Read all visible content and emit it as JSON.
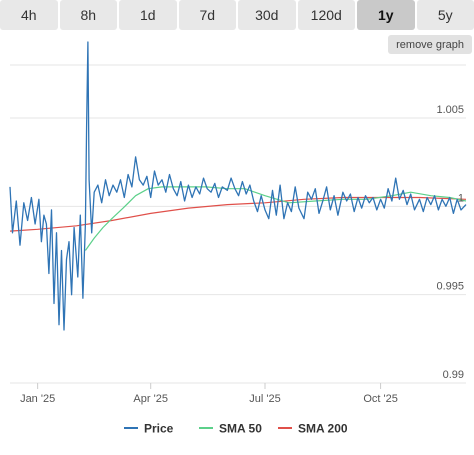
{
  "toolbar": {
    "ranges": [
      {
        "label": "4h",
        "active": false
      },
      {
        "label": "8h",
        "active": false
      },
      {
        "label": "1d",
        "active": false
      },
      {
        "label": "7d",
        "active": false
      },
      {
        "label": "30d",
        "active": false
      },
      {
        "label": "120d",
        "active": false
      },
      {
        "label": "1y",
        "active": true
      },
      {
        "label": "5y",
        "active": false
      }
    ],
    "remove_label": "remove graph"
  },
  "chart_data": {
    "type": "line",
    "title": "",
    "xlabel": "",
    "ylabel": "",
    "x_range": [
      "2024-12-10",
      "2025-12-08"
    ],
    "ylim": [
      0.99,
      1.008
    ],
    "grid": true,
    "legend_position": "bottom",
    "x_ticks": [
      {
        "date": "2025-01-01",
        "label": "Jan '25"
      },
      {
        "date": "2025-04-01",
        "label": "Apr '25"
      },
      {
        "date": "2025-07-01",
        "label": "Jul '25"
      },
      {
        "date": "2025-10-01",
        "label": "Oct '25"
      }
    ],
    "y_ticks": [
      {
        "value": 0.99,
        "label": "0.99"
      },
      {
        "value": 0.995,
        "label": "0.995"
      },
      {
        "value": 1.0,
        "label": "1"
      },
      {
        "value": 1.005,
        "label": "1.005"
      }
    ],
    "series": [
      {
        "name": "Price",
        "color": "#2f74b5",
        "points": [
          [
            "2024-12-10",
            1.0011
          ],
          [
            "2024-12-12",
            0.9985
          ],
          [
            "2024-12-15",
            1.0003
          ],
          [
            "2024-12-18",
            0.9978
          ],
          [
            "2024-12-21",
            1.0002
          ],
          [
            "2024-12-24",
            0.9992
          ],
          [
            "2024-12-27",
            1.0005
          ],
          [
            "2024-12-30",
            0.999
          ],
          [
            "2025-01-02",
            1.0004
          ],
          [
            "2025-01-04",
            0.998
          ],
          [
            "2025-01-06",
            0.9995
          ],
          [
            "2025-01-08",
            0.999
          ],
          [
            "2025-01-10",
            0.9962
          ],
          [
            "2025-01-12",
            0.9998
          ],
          [
            "2025-01-14",
            0.9945
          ],
          [
            "2025-01-16",
            0.9985
          ],
          [
            "2025-01-18",
            0.9933
          ],
          [
            "2025-01-20",
            0.9975
          ],
          [
            "2025-01-22",
            0.993
          ],
          [
            "2025-01-24",
            0.997
          ],
          [
            "2025-01-26",
            0.998
          ],
          [
            "2025-01-28",
            0.995
          ],
          [
            "2025-01-30",
            0.9988
          ],
          [
            "2025-02-02",
            0.996
          ],
          [
            "2025-02-04",
            0.9995
          ],
          [
            "2025-02-06",
            0.9948
          ],
          [
            "2025-02-08",
            0.999
          ],
          [
            "2025-02-09",
            1.0045
          ],
          [
            "2025-02-10",
            1.0093
          ],
          [
            "2025-02-11",
            1.0015
          ],
          [
            "2025-02-13",
            0.9985
          ],
          [
            "2025-02-15",
            1.0008
          ],
          [
            "2025-02-18",
            1.0012
          ],
          [
            "2025-02-21",
            1.0002
          ],
          [
            "2025-02-24",
            1.0015
          ],
          [
            "2025-02-27",
            1.0006
          ],
          [
            "2025-03-02",
            1.0012
          ],
          [
            "2025-03-05",
            1.0008
          ],
          [
            "2025-03-08",
            1.0015
          ],
          [
            "2025-03-11",
            1.0005
          ],
          [
            "2025-03-14",
            1.0018
          ],
          [
            "2025-03-17",
            1.0011
          ],
          [
            "2025-03-20",
            1.0028
          ],
          [
            "2025-03-23",
            1.0015
          ],
          [
            "2025-03-26",
            1.0012
          ],
          [
            "2025-03-29",
            1.0017
          ],
          [
            "2025-04-01",
            1.0005
          ],
          [
            "2025-04-04",
            1.002
          ],
          [
            "2025-04-07",
            1.0012
          ],
          [
            "2025-04-10",
            1.0015
          ],
          [
            "2025-04-13",
            1.0008
          ],
          [
            "2025-04-16",
            1.0018
          ],
          [
            "2025-04-19",
            1.001
          ],
          [
            "2025-04-22",
            1.0006
          ],
          [
            "2025-04-25",
            1.0014
          ],
          [
            "2025-04-28",
            1.0003
          ],
          [
            "2025-05-01",
            1.0012
          ],
          [
            "2025-05-04",
            1.0005
          ],
          [
            "2025-05-07",
            1.0011
          ],
          [
            "2025-05-10",
            1.0007
          ],
          [
            "2025-05-13",
            1.0016
          ],
          [
            "2025-05-16",
            1.001
          ],
          [
            "2025-05-19",
            1.0008
          ],
          [
            "2025-05-22",
            1.0013
          ],
          [
            "2025-05-25",
            1.0005
          ],
          [
            "2025-05-28",
            1.0011
          ],
          [
            "2025-06-01",
            1.0009
          ],
          [
            "2025-06-04",
            1.0016
          ],
          [
            "2025-06-07",
            1.001
          ],
          [
            "2025-06-10",
            1.0006
          ],
          [
            "2025-06-13",
            1.0014
          ],
          [
            "2025-06-16",
            1.0007
          ],
          [
            "2025-06-19",
            1.0012
          ],
          [
            "2025-06-22",
            1.0003
          ],
          [
            "2025-06-25",
            0.9997
          ],
          [
            "2025-06-28",
            1.0006
          ],
          [
            "2025-07-01",
            0.9998
          ],
          [
            "2025-07-04",
            0.9993
          ],
          [
            "2025-07-07",
            1.0009
          ],
          [
            "2025-07-10",
            0.9995
          ],
          [
            "2025-07-13",
            1.0012
          ],
          [
            "2025-07-16",
            0.9993
          ],
          [
            "2025-07-19",
            1.0002
          ],
          [
            "2025-07-22",
            0.9997
          ],
          [
            "2025-07-25",
            1.0011
          ],
          [
            "2025-07-28",
            0.9999
          ],
          [
            "2025-08-01",
            0.9993
          ],
          [
            "2025-08-04",
            1.0008
          ],
          [
            "2025-08-07",
            1.0004
          ],
          [
            "2025-08-10",
            1.001
          ],
          [
            "2025-08-13",
            0.9996
          ],
          [
            "2025-08-16",
            1.0003
          ],
          [
            "2025-08-19",
            1.0011
          ],
          [
            "2025-08-22",
            0.9998
          ],
          [
            "2025-08-25",
            1.0006
          ],
          [
            "2025-08-28",
            0.9995
          ],
          [
            "2025-09-01",
            1.0008
          ],
          [
            "2025-09-04",
            1.0003
          ],
          [
            "2025-09-07",
            1.0007
          ],
          [
            "2025-09-10",
            0.9997
          ],
          [
            "2025-09-13",
            1.0005
          ],
          [
            "2025-09-16",
            0.9999
          ],
          [
            "2025-09-19",
            1.0006
          ],
          [
            "2025-09-22",
            1.0002
          ],
          [
            "2025-09-25",
            1.0005
          ],
          [
            "2025-09-28",
            0.9998
          ],
          [
            "2025-10-01",
            1.0004
          ],
          [
            "2025-10-04",
            0.9999
          ],
          [
            "2025-10-07",
            1.001
          ],
          [
            "2025-10-10",
            1.0003
          ],
          [
            "2025-10-13",
            1.0016
          ],
          [
            "2025-10-16",
            1.0004
          ],
          [
            "2025-10-19",
            1.0009
          ],
          [
            "2025-10-22",
            1.0001
          ],
          [
            "2025-10-25",
            1.0007
          ],
          [
            "2025-10-28",
            0.9998
          ],
          [
            "2025-11-01",
            1.0004
          ],
          [
            "2025-11-04",
            0.9997
          ],
          [
            "2025-11-07",
            1.0005
          ],
          [
            "2025-11-10",
            1.0001
          ],
          [
            "2025-11-13",
            1.0006
          ],
          [
            "2025-11-16",
            0.9998
          ],
          [
            "2025-11-19",
            1.0004
          ],
          [
            "2025-11-22",
            1.0
          ],
          [
            "2025-11-25",
            1.0005
          ],
          [
            "2025-11-28",
            0.9996
          ],
          [
            "2025-12-01",
            1.0004
          ],
          [
            "2025-12-04",
            0.9998
          ],
          [
            "2025-12-08",
            1.0001
          ]
        ]
      },
      {
        "name": "SMA 50",
        "color": "#5cd08a",
        "points": [
          [
            "2025-02-08",
            0.9975
          ],
          [
            "2025-02-15",
            0.9982
          ],
          [
            "2025-02-22",
            0.9988
          ],
          [
            "2025-03-01",
            0.9993
          ],
          [
            "2025-03-10",
            0.9999
          ],
          [
            "2025-03-20",
            1.0006
          ],
          [
            "2025-03-30",
            1.001
          ],
          [
            "2025-04-10",
            1.0011
          ],
          [
            "2025-04-25",
            1.0011
          ],
          [
            "2025-05-15",
            1.0011
          ],
          [
            "2025-06-01",
            1.001
          ],
          [
            "2025-06-15",
            1.001
          ],
          [
            "2025-07-01",
            1.0006
          ],
          [
            "2025-07-20",
            1.0002
          ],
          [
            "2025-08-10",
            1.0003
          ],
          [
            "2025-09-01",
            1.0004
          ],
          [
            "2025-09-20",
            1.0004
          ],
          [
            "2025-10-10",
            1.0006
          ],
          [
            "2025-10-25",
            1.0008
          ],
          [
            "2025-11-10",
            1.0006
          ],
          [
            "2025-11-25",
            1.0005
          ],
          [
            "2025-12-08",
            1.0003
          ]
        ]
      },
      {
        "name": "SMA 200",
        "color": "#e0504a",
        "points": [
          [
            "2024-12-10",
            0.9986
          ],
          [
            "2025-01-01",
            0.9987
          ],
          [
            "2025-02-01",
            0.9989
          ],
          [
            "2025-03-01",
            0.9992
          ],
          [
            "2025-04-01",
            0.9996
          ],
          [
            "2025-05-01",
            0.9999
          ],
          [
            "2025-06-01",
            1.0001
          ],
          [
            "2025-07-01",
            1.0002
          ],
          [
            "2025-08-01",
            1.0004
          ],
          [
            "2025-09-01",
            1.0005
          ],
          [
            "2025-10-01",
            1.0005
          ],
          [
            "2025-11-01",
            1.0005
          ],
          [
            "2025-12-08",
            1.0004
          ]
        ]
      }
    ]
  }
}
